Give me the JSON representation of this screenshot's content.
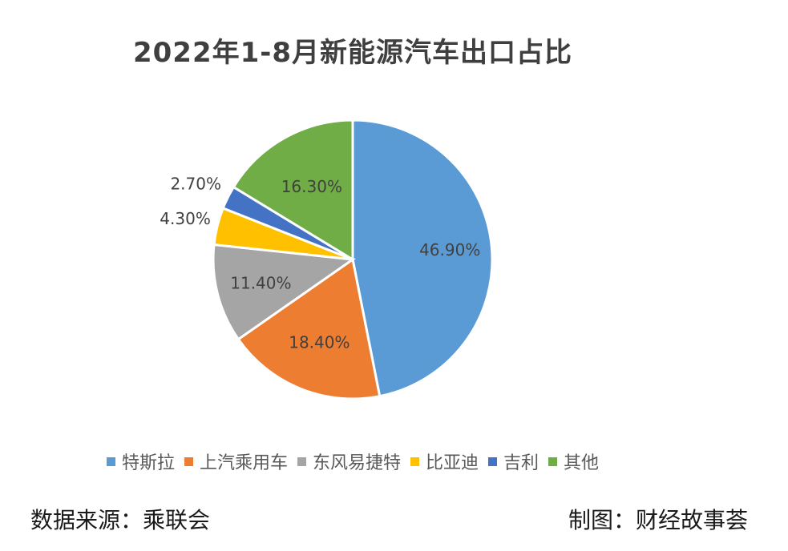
{
  "chart_data": {
    "type": "pie",
    "title": "2022年1-8月新能源汽车出口占比",
    "categories": [
      "特斯拉",
      "上汽乘用车",
      "东风易捷特",
      "比亚迪",
      "吉利",
      "其他"
    ],
    "values": [
      46.9,
      18.4,
      11.4,
      4.3,
      2.7,
      16.3
    ],
    "data_labels": [
      "46.90%",
      "18.40%",
      "11.40%",
      "4.30%",
      "2.70%",
      "16.30%"
    ],
    "colors": [
      "#5B9BD5",
      "#ED7D31",
      "#A5A5A5",
      "#FFC000",
      "#4472C4",
      "#70AD47"
    ],
    "legend_position": "bottom"
  },
  "footer": {
    "source": "数据来源：乘联会",
    "credit": "制图：财经故事荟"
  }
}
